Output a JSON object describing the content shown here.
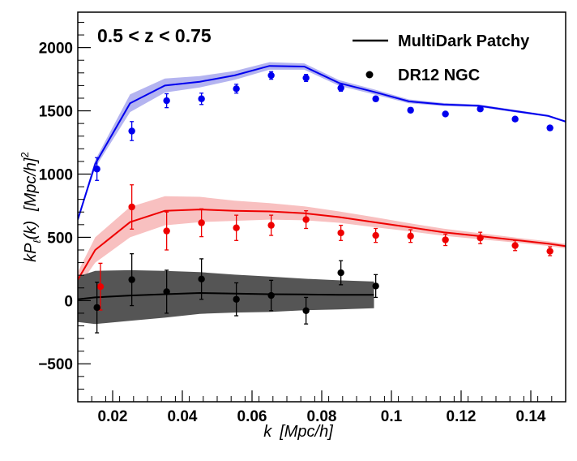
{
  "chart_data": {
    "type": "line",
    "title": "0.5 < z < 0.75",
    "xlabel_var": "k",
    "xlabel_unit": "[Mpc/h]",
    "ylabel_main": "kP",
    "ylabel_sub": "ℓ",
    "ylabel_arg": "(k)",
    "ylabel_unit": "[Mpc/h]",
    "ylabel_exp": "2",
    "xlim": [
      0.01,
      0.15
    ],
    "ylim": [
      -800,
      2280
    ],
    "xticks": [
      0.02,
      0.04,
      0.06,
      0.08,
      0.1,
      0.12,
      0.14
    ],
    "xtick_labels": [
      "0.02",
      "0.04",
      "0.06",
      "0.08",
      "0.1",
      "0.12",
      "0.14"
    ],
    "yticks": [
      -500,
      0,
      500,
      1000,
      1500,
      2000
    ],
    "ytick_labels": [
      "−500",
      "0",
      "500",
      "1000",
      "1500",
      "2000"
    ],
    "legend": {
      "placement": "top-right",
      "entries": [
        {
          "label": "MultiDark Patchy",
          "marker": "line"
        },
        {
          "label": "DR12 NGC",
          "marker": "point"
        }
      ]
    },
    "series": [
      {
        "kind": "model",
        "color": "#0000ee",
        "band_color": "#b4b4f0",
        "x": [
          0.01,
          0.015,
          0.025,
          0.035,
          0.045,
          0.055,
          0.065,
          0.075,
          0.085,
          0.095,
          0.105,
          0.115,
          0.125,
          0.135,
          0.145,
          0.15
        ],
        "y": [
          640,
          1080,
          1560,
          1700,
          1730,
          1780,
          1855,
          1850,
          1720,
          1650,
          1575,
          1550,
          1540,
          1500,
          1460,
          1415
        ],
        "band_half": [
          15,
          30,
          70,
          55,
          45,
          35,
          30,
          25,
          22,
          20,
          15,
          12,
          10,
          10,
          8,
          8
        ]
      },
      {
        "kind": "model",
        "color": "#ee0000",
        "band_color": "#f8c0c0",
        "x": [
          0.01,
          0.015,
          0.025,
          0.035,
          0.045,
          0.055,
          0.065,
          0.075,
          0.085,
          0.095,
          0.105,
          0.115,
          0.125,
          0.135,
          0.145,
          0.15
        ],
        "y": [
          165,
          400,
          620,
          710,
          720,
          710,
          705,
          690,
          660,
          620,
          580,
          540,
          510,
          480,
          450,
          430
        ],
        "band_half": [
          60,
          100,
          120,
          115,
          100,
          80,
          65,
          55,
          45,
          40,
          32,
          28,
          24,
          20,
          18,
          18
        ]
      },
      {
        "kind": "model",
        "color": "#000000",
        "band_color": "#555555",
        "x": [
          0.01,
          0.015,
          0.025,
          0.035,
          0.045,
          0.055,
          0.065,
          0.075,
          0.085,
          0.095
        ],
        "y": [
          10,
          25,
          40,
          50,
          60,
          55,
          50,
          48,
          45,
          45
        ],
        "band_half": [
          180,
          210,
          200,
          185,
          165,
          150,
          140,
          125,
          115,
          105
        ]
      },
      {
        "kind": "data",
        "color": "#0000ee",
        "x": [
          0.0155,
          0.0255,
          0.0355,
          0.0455,
          0.0555,
          0.0655,
          0.0755,
          0.0855,
          0.0955,
          0.1055,
          0.1155,
          0.1255,
          0.1355,
          0.1455
        ],
        "y": [
          1040,
          1340,
          1580,
          1595,
          1675,
          1780,
          1760,
          1680,
          1595,
          1505,
          1475,
          1515,
          1435,
          1365
        ],
        "err": [
          90,
          75,
          55,
          45,
          35,
          30,
          28,
          25,
          20,
          18,
          15,
          15,
          15,
          15
        ]
      },
      {
        "kind": "data",
        "color": "#ee0000",
        "x": [
          0.0165,
          0.0255,
          0.0355,
          0.0455,
          0.0555,
          0.0655,
          0.0755,
          0.0855,
          0.0955,
          0.1055,
          0.1155,
          0.1255,
          0.1355,
          0.1455
        ],
        "y": [
          110,
          740,
          550,
          615,
          575,
          595,
          640,
          535,
          515,
          510,
          480,
          495,
          435,
          390
        ],
        "err": [
          185,
          175,
          150,
          110,
          100,
          80,
          70,
          60,
          55,
          50,
          45,
          45,
          40,
          35
        ]
      },
      {
        "kind": "data",
        "color": "#000000",
        "x": [
          0.0155,
          0.0255,
          0.0355,
          0.0455,
          0.0555,
          0.0655,
          0.0755,
          0.0855,
          0.0955
        ],
        "y": [
          -55,
          165,
          70,
          170,
          10,
          40,
          -80,
          220,
          115
        ],
        "err": [
          200,
          205,
          170,
          160,
          130,
          120,
          105,
          95,
          90
        ]
      }
    ]
  }
}
